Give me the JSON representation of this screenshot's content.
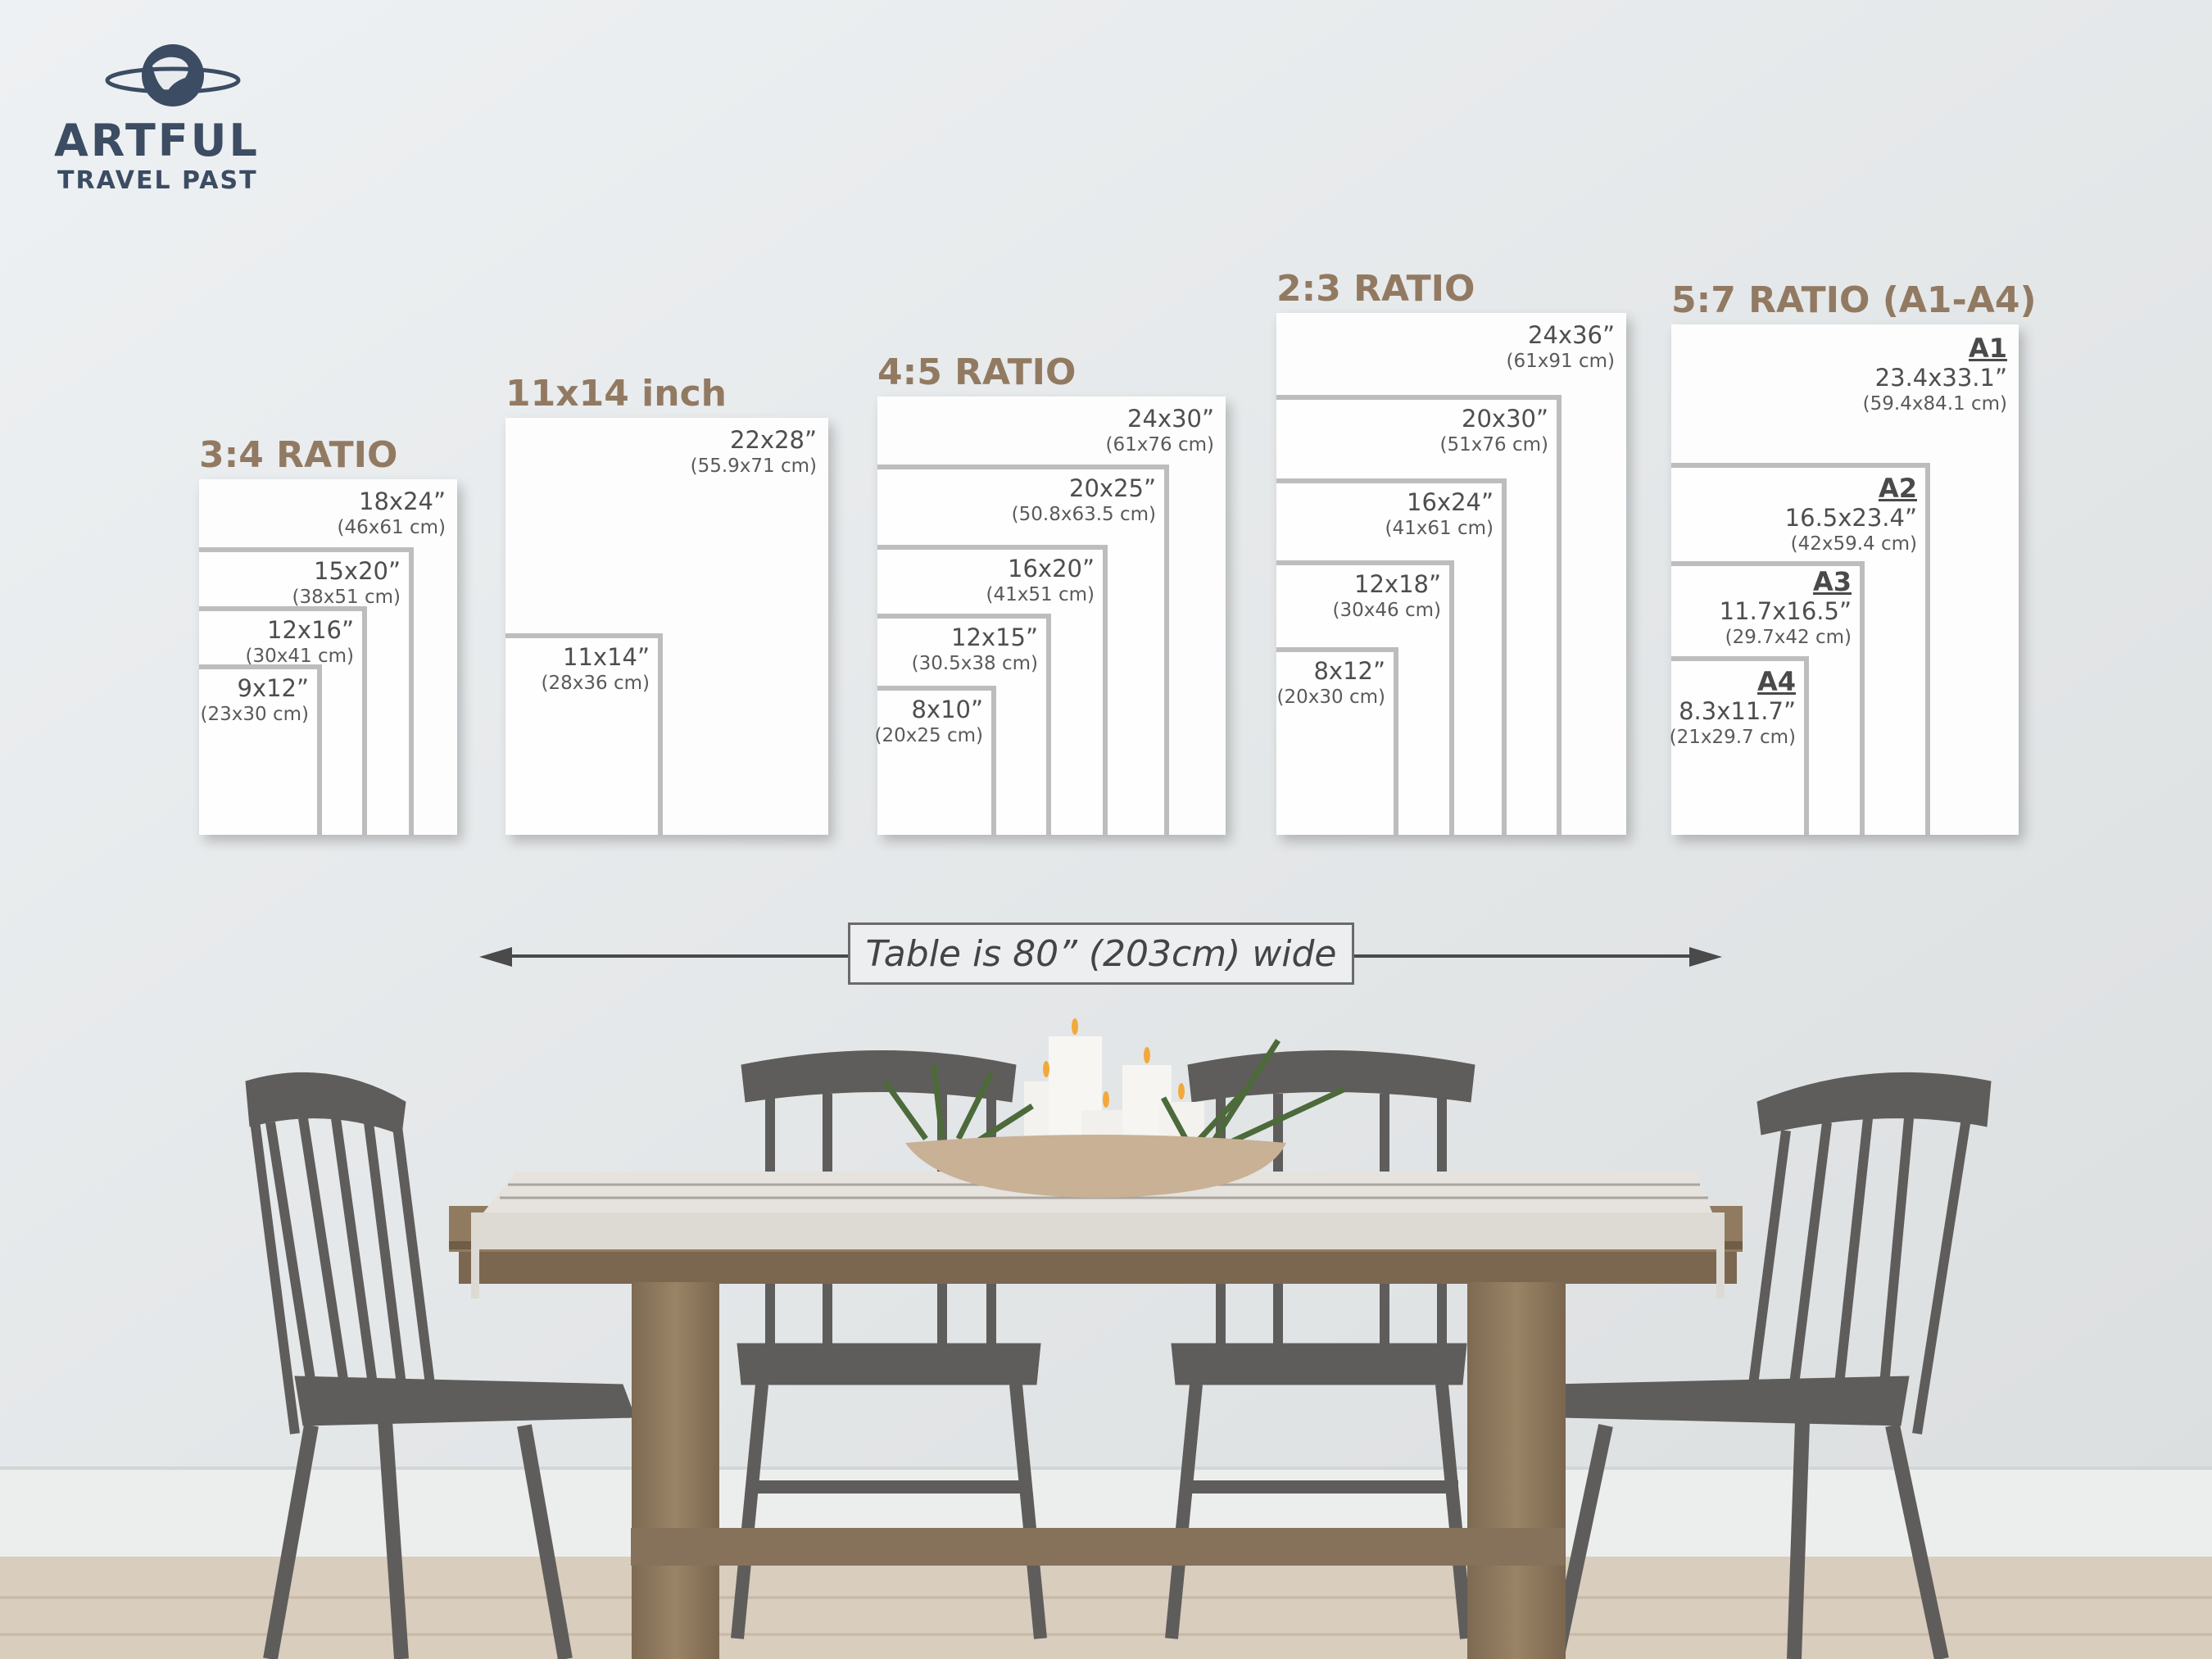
{
  "logo": {
    "name": "ARTFUL",
    "tagline": "TRAVEL PAST",
    "icon": "globe-icon",
    "color": "#3b4c63"
  },
  "label_color": "#927a62",
  "groups": [
    {
      "title": "3:4 RATIO",
      "sizes": [
        {
          "inch": "18x24”",
          "cm": "(46x61 cm)"
        },
        {
          "inch": "15x20”",
          "cm": "(38x51 cm)"
        },
        {
          "inch": "12x16”",
          "cm": "(30x41 cm)"
        },
        {
          "inch": "9x12”",
          "cm": "(23x30 cm)"
        }
      ]
    },
    {
      "title": "11x14 inch",
      "sizes": [
        {
          "inch": "22x28”",
          "cm": "(55.9x71 cm)"
        },
        {
          "inch": "11x14”",
          "cm": "(28x36 cm)"
        }
      ]
    },
    {
      "title": "4:5 RATIO",
      "sizes": [
        {
          "inch": "24x30”",
          "cm": "(61x76 cm)"
        },
        {
          "inch": "20x25”",
          "cm": "(50.8x63.5 cm)"
        },
        {
          "inch": "16x20”",
          "cm": "(41x51 cm)"
        },
        {
          "inch": "12x15”",
          "cm": "(30.5x38 cm)"
        },
        {
          "inch": "8x10”",
          "cm": "(20x25 cm)"
        }
      ]
    },
    {
      "title": "2:3 RATIO",
      "sizes": [
        {
          "inch": "24x36”",
          "cm": "(61x91 cm)"
        },
        {
          "inch": "20x30”",
          "cm": "(51x76 cm)"
        },
        {
          "inch": "16x24”",
          "cm": "(41x61 cm)"
        },
        {
          "inch": "12x18”",
          "cm": "(30x46 cm)"
        },
        {
          "inch": "8x12”",
          "cm": "(20x30 cm)"
        }
      ]
    },
    {
      "title": "5:7 RATIO (A1-A4)",
      "sizes": [
        {
          "name": "A1",
          "inch": "23.4x33.1”",
          "cm": "(59.4x84.1 cm)"
        },
        {
          "name": "A2",
          "inch": "16.5x23.4”",
          "cm": "(42x59.4 cm)"
        },
        {
          "name": "A3",
          "inch": "11.7x16.5”",
          "cm": "(29.7x42 cm)"
        },
        {
          "name": "A4",
          "inch": "8.3x11.7”",
          "cm": "(21x29.7 cm)"
        }
      ]
    }
  ],
  "table_note": "Table is 80” (203cm) wide"
}
